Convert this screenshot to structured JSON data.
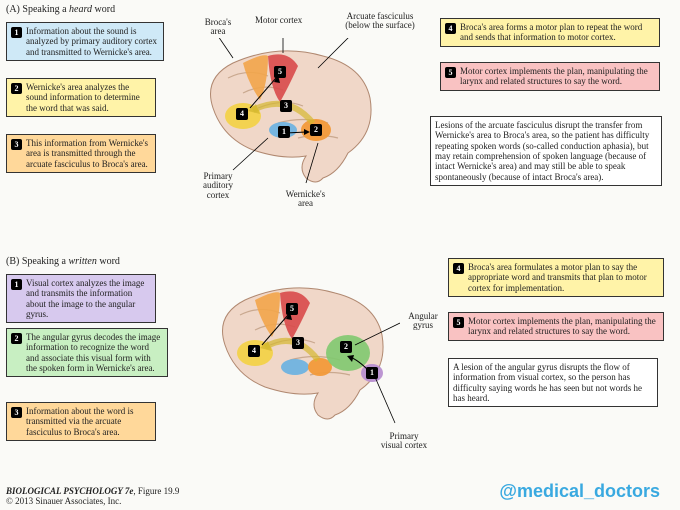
{
  "colors": {
    "blue": "#cfe9f7",
    "yellow": "#fff3a8",
    "orange": "#ffd89a",
    "red": "#f9c2c2",
    "purple": "#d7c9ee",
    "green": "#c8efc2",
    "white": "#ffffff",
    "brain_fill": "#f0d7c8",
    "brain_stroke": "#b08870",
    "motor": "#d84a4a",
    "premotor": "#f2a54a",
    "broca": "#f2d24a",
    "auditory": "#6fb3e0",
    "wernicke": "#f29a3a",
    "angular": "#7fc96f",
    "visual": "#b88fd0",
    "arcuate": "#ffe66b"
  },
  "sectionA": {
    "title_pre": "(A) Speaking a ",
    "title_em": "heard",
    "title_post": " word",
    "labels": {
      "broca": "Broca's\narea",
      "motor": "Motor cortex",
      "arcuate": "Arcuate fasciculus\n(below the surface)",
      "auditory": "Primary\nauditory\ncortex",
      "wernicke": "Wernicke's\narea"
    },
    "steps": [
      {
        "n": "1",
        "color": "blue",
        "text": "Information about the sound is analyzed by primary auditory cortex and transmitted to Wernicke's area."
      },
      {
        "n": "2",
        "color": "yellow",
        "text": "Wernicke's area analyzes the sound information to determine the word that was said."
      },
      {
        "n": "3",
        "color": "orange",
        "text": "This information from Wernicke's area is transmitted through the arcuate fasciculus to Broca's area."
      },
      {
        "n": "4",
        "color": "yellow",
        "text": "Broca's area forms a motor plan to repeat the word and sends that information to motor cortex."
      },
      {
        "n": "5",
        "color": "red",
        "text": "Motor cortex implements the plan, manipulating the larynx and related structures to say the word."
      }
    ],
    "lesion": "Lesions of the arcuate fasciculus disrupt the transfer from Wernicke's area to Broca's area, so the patient has difficulty repeating spoken words (so-called conduction aphasia), but may retain comprehension of spoken language (because of intact Wernicke's area) and may still be able to speak spontaneously (because of intact Broca's area)."
  },
  "sectionB": {
    "title_pre": "(B) Speaking a ",
    "title_em": "written",
    "title_post": " word",
    "labels": {
      "angular": "Angular\ngyrus",
      "visual": "Primary\nvisual cortex"
    },
    "steps": [
      {
        "n": "1",
        "color": "purple",
        "text": "Visual cortex analyzes the image and transmits the information about the image to the angular gyrus."
      },
      {
        "n": "2",
        "color": "green",
        "text": "The angular gyrus decodes the image information to recognize the word and associate this visual form with the spoken form in Wernicke's area."
      },
      {
        "n": "3",
        "color": "orange",
        "text": "Information about the word is transmitted via the arcuate fasciculus to Broca's area."
      },
      {
        "n": "4",
        "color": "yellow",
        "text": "Broca's area formulates a motor plan to say the appropriate word and transmits that plan to motor cortex for implementation."
      },
      {
        "n": "5",
        "color": "red",
        "text": "Motor cortex implements the plan, manipulating the larynx and related structures to say the word."
      }
    ],
    "lesion": "A lesion of the angular gyrus disrupts the flow of information from visual cortex, so the person has difficulty saying words he has seen but not words he has heard."
  },
  "footer": {
    "title": "BIOLOGICAL PSYCHOLOGY 7e",
    "fig": ", Figure 19.9",
    "copyright": "© 2013 Sinauer Associates, Inc."
  },
  "handle": "@medical_doctors"
}
